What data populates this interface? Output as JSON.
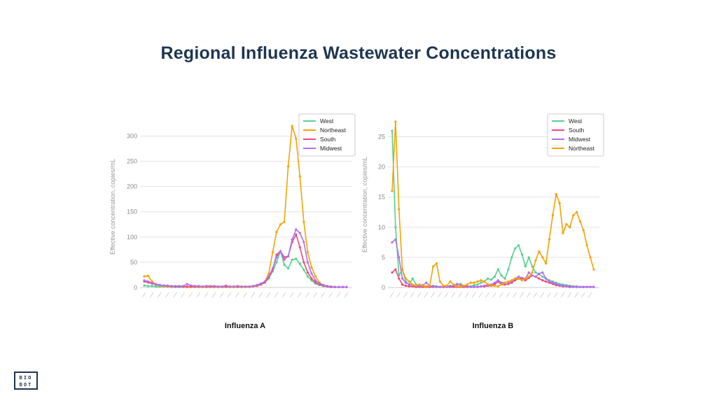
{
  "title": "Regional Influenza Wastewater Concentrations",
  "logo": {
    "line1": "BIO",
    "line2": "BOT"
  },
  "chart_data": [
    {
      "type": "line",
      "caption": "Influenza A",
      "ylabel": "Effective concentration, copies/mL",
      "xlabel": "",
      "ylim": [
        0,
        320
      ],
      "yticks": [
        0,
        50,
        100,
        150,
        200,
        250,
        300
      ],
      "legend_position": "top-right",
      "grid": true,
      "x_count": 53,
      "series": [
        {
          "name": "West",
          "color": "#56d18f",
          "values": [
            4,
            3,
            3,
            2,
            2,
            2,
            2,
            1,
            1,
            1,
            1,
            1,
            1,
            1,
            1,
            1,
            1,
            1,
            1,
            1,
            1,
            1,
            1,
            1,
            1,
            1,
            1,
            2,
            3,
            5,
            7,
            10,
            18,
            32,
            50,
            72,
            45,
            38,
            55,
            57,
            47,
            35,
            22,
            14,
            8,
            5,
            3,
            2,
            1,
            1,
            1,
            1,
            1
          ]
        },
        {
          "name": "Northeast",
          "color": "#f5a300",
          "values": [
            22,
            23,
            12,
            6,
            4,
            3,
            2,
            2,
            2,
            2,
            2,
            1,
            1,
            1,
            1,
            1,
            1,
            1,
            1,
            1,
            1,
            1,
            1,
            1,
            1,
            1,
            1,
            1,
            2,
            3,
            6,
            12,
            28,
            70,
            110,
            125,
            130,
            240,
            320,
            295,
            220,
            130,
            70,
            40,
            22,
            10,
            5,
            3,
            2,
            1,
            1,
            1,
            1
          ]
        },
        {
          "name": "South",
          "color": "#f0487a",
          "values": [
            12,
            10,
            8,
            6,
            5,
            4,
            3,
            3,
            2,
            2,
            2,
            2,
            2,
            2,
            2,
            2,
            2,
            2,
            2,
            2,
            2,
            2,
            2,
            2,
            2,
            2,
            2,
            2,
            3,
            4,
            6,
            10,
            20,
            35,
            65,
            72,
            60,
            62,
            90,
            105,
            80,
            50,
            30,
            18,
            10,
            6,
            4,
            2,
            1,
            1,
            1,
            1,
            1
          ]
        },
        {
          "name": "Midwest",
          "color": "#b26ef2",
          "values": [
            14,
            12,
            9,
            7,
            5,
            4,
            4,
            3,
            3,
            3,
            3,
            7,
            4,
            3,
            3,
            2,
            3,
            3,
            3,
            2,
            2,
            4,
            2,
            2,
            3,
            2,
            2,
            2,
            3,
            5,
            8,
            12,
            22,
            38,
            60,
            72,
            55,
            62,
            95,
            115,
            108,
            90,
            50,
            28,
            14,
            8,
            5,
            3,
            2,
            1,
            1,
            1,
            1
          ]
        }
      ]
    },
    {
      "type": "line",
      "caption": "Influenza B",
      "ylabel": "Effective concentration, copies/mL",
      "xlabel": "",
      "ylim": [
        0,
        27.5
      ],
      "yticks": [
        0,
        5,
        10,
        15,
        20,
        25
      ],
      "legend_position": "top-right",
      "grid": true,
      "x_count": 60,
      "series": [
        {
          "name": "West",
          "color": "#56d18f",
          "values": [
            26,
            10,
            2,
            3,
            1,
            0.5,
            1.5,
            0.5,
            0.3,
            0.3,
            0.2,
            0.2,
            0.3,
            0.2,
            0.1,
            0.1,
            0.2,
            0.3,
            0.3,
            0.5,
            0.6,
            0.3,
            0.2,
            0.2,
            0.4,
            0.5,
            0.8,
            1,
            1.5,
            1.3,
            1.8,
            3,
            2,
            1.5,
            3,
            5,
            6.5,
            7,
            5.5,
            3.5,
            5,
            3.5,
            2.5,
            2.2,
            1.8,
            1.5,
            1.2,
            1,
            0.8,
            0.6,
            0.5,
            0.4,
            0.3,
            0.2,
            0.2,
            0.1,
            0.1,
            0.1,
            0.1,
            0.1
          ]
        },
        {
          "name": "South",
          "color": "#f0487a",
          "values": [
            2.5,
            3,
            1.5,
            0.5,
            0.3,
            0.2,
            0.2,
            0.1,
            0.1,
            0.1,
            0.1,
            0.1,
            0.1,
            0.1,
            0.1,
            0.1,
            0.1,
            0.1,
            0.1,
            0.1,
            0.1,
            0.1,
            0.1,
            0.1,
            0.1,
            0.1,
            0.2,
            0.2,
            0.3,
            0.3,
            0.5,
            1,
            0.5,
            0.5,
            0.6,
            0.8,
            1.2,
            1.5,
            1.5,
            1.2,
            1.6,
            2,
            1.8,
            1.5,
            1.2,
            1,
            0.8,
            0.6,
            0.4,
            0.3,
            0.2,
            0.2,
            0.1,
            0.1,
            0.1,
            0.1,
            0.1,
            0.1,
            0.1,
            0.1
          ]
        },
        {
          "name": "Midwest",
          "color": "#b26ef2",
          "values": [
            7.5,
            8,
            5,
            1.5,
            0.8,
            0.5,
            0.4,
            0.3,
            0.2,
            0.4,
            0.8,
            0.3,
            0.2,
            0.1,
            0.1,
            0.2,
            0.1,
            0.2,
            0.3,
            0.6,
            0.4,
            0.3,
            0.2,
            0.1,
            0.1,
            0.1,
            0.2,
            0.3,
            0.5,
            0.5,
            0.8,
            1.2,
            0.8,
            0.8,
            0.9,
            1,
            1.5,
            1.8,
            1.6,
            1.5,
            2.5,
            2,
            1.8,
            2.3,
            2.5,
            1.5,
            1,
            0.8,
            0.6,
            0.4,
            0.3,
            0.2,
            0.2,
            0.1,
            0.1,
            0.1,
            0.1,
            0.1,
            0.1,
            0.1
          ]
        },
        {
          "name": "Northeast",
          "color": "#f5a300",
          "values": [
            16,
            27.5,
            13,
            3,
            1.5,
            1,
            0.5,
            0.3,
            0.5,
            0.3,
            0.2,
            0.3,
            3.5,
            4,
            1,
            0.3,
            0.3,
            1,
            0.5,
            0.2,
            0.2,
            0.3,
            0.5,
            0.8,
            0.8,
            1,
            1.2,
            1,
            0.5,
            0.3,
            0.3,
            0.2,
            0.5,
            0.8,
            1,
            1.2,
            1.5,
            1.5,
            1.2,
            1.5,
            1.8,
            2.5,
            4.5,
            6,
            5,
            4,
            8,
            12,
            15.5,
            14,
            9,
            10.5,
            10,
            12,
            12.5,
            11,
            9.5,
            7,
            5,
            3
          ]
        }
      ]
    }
  ]
}
